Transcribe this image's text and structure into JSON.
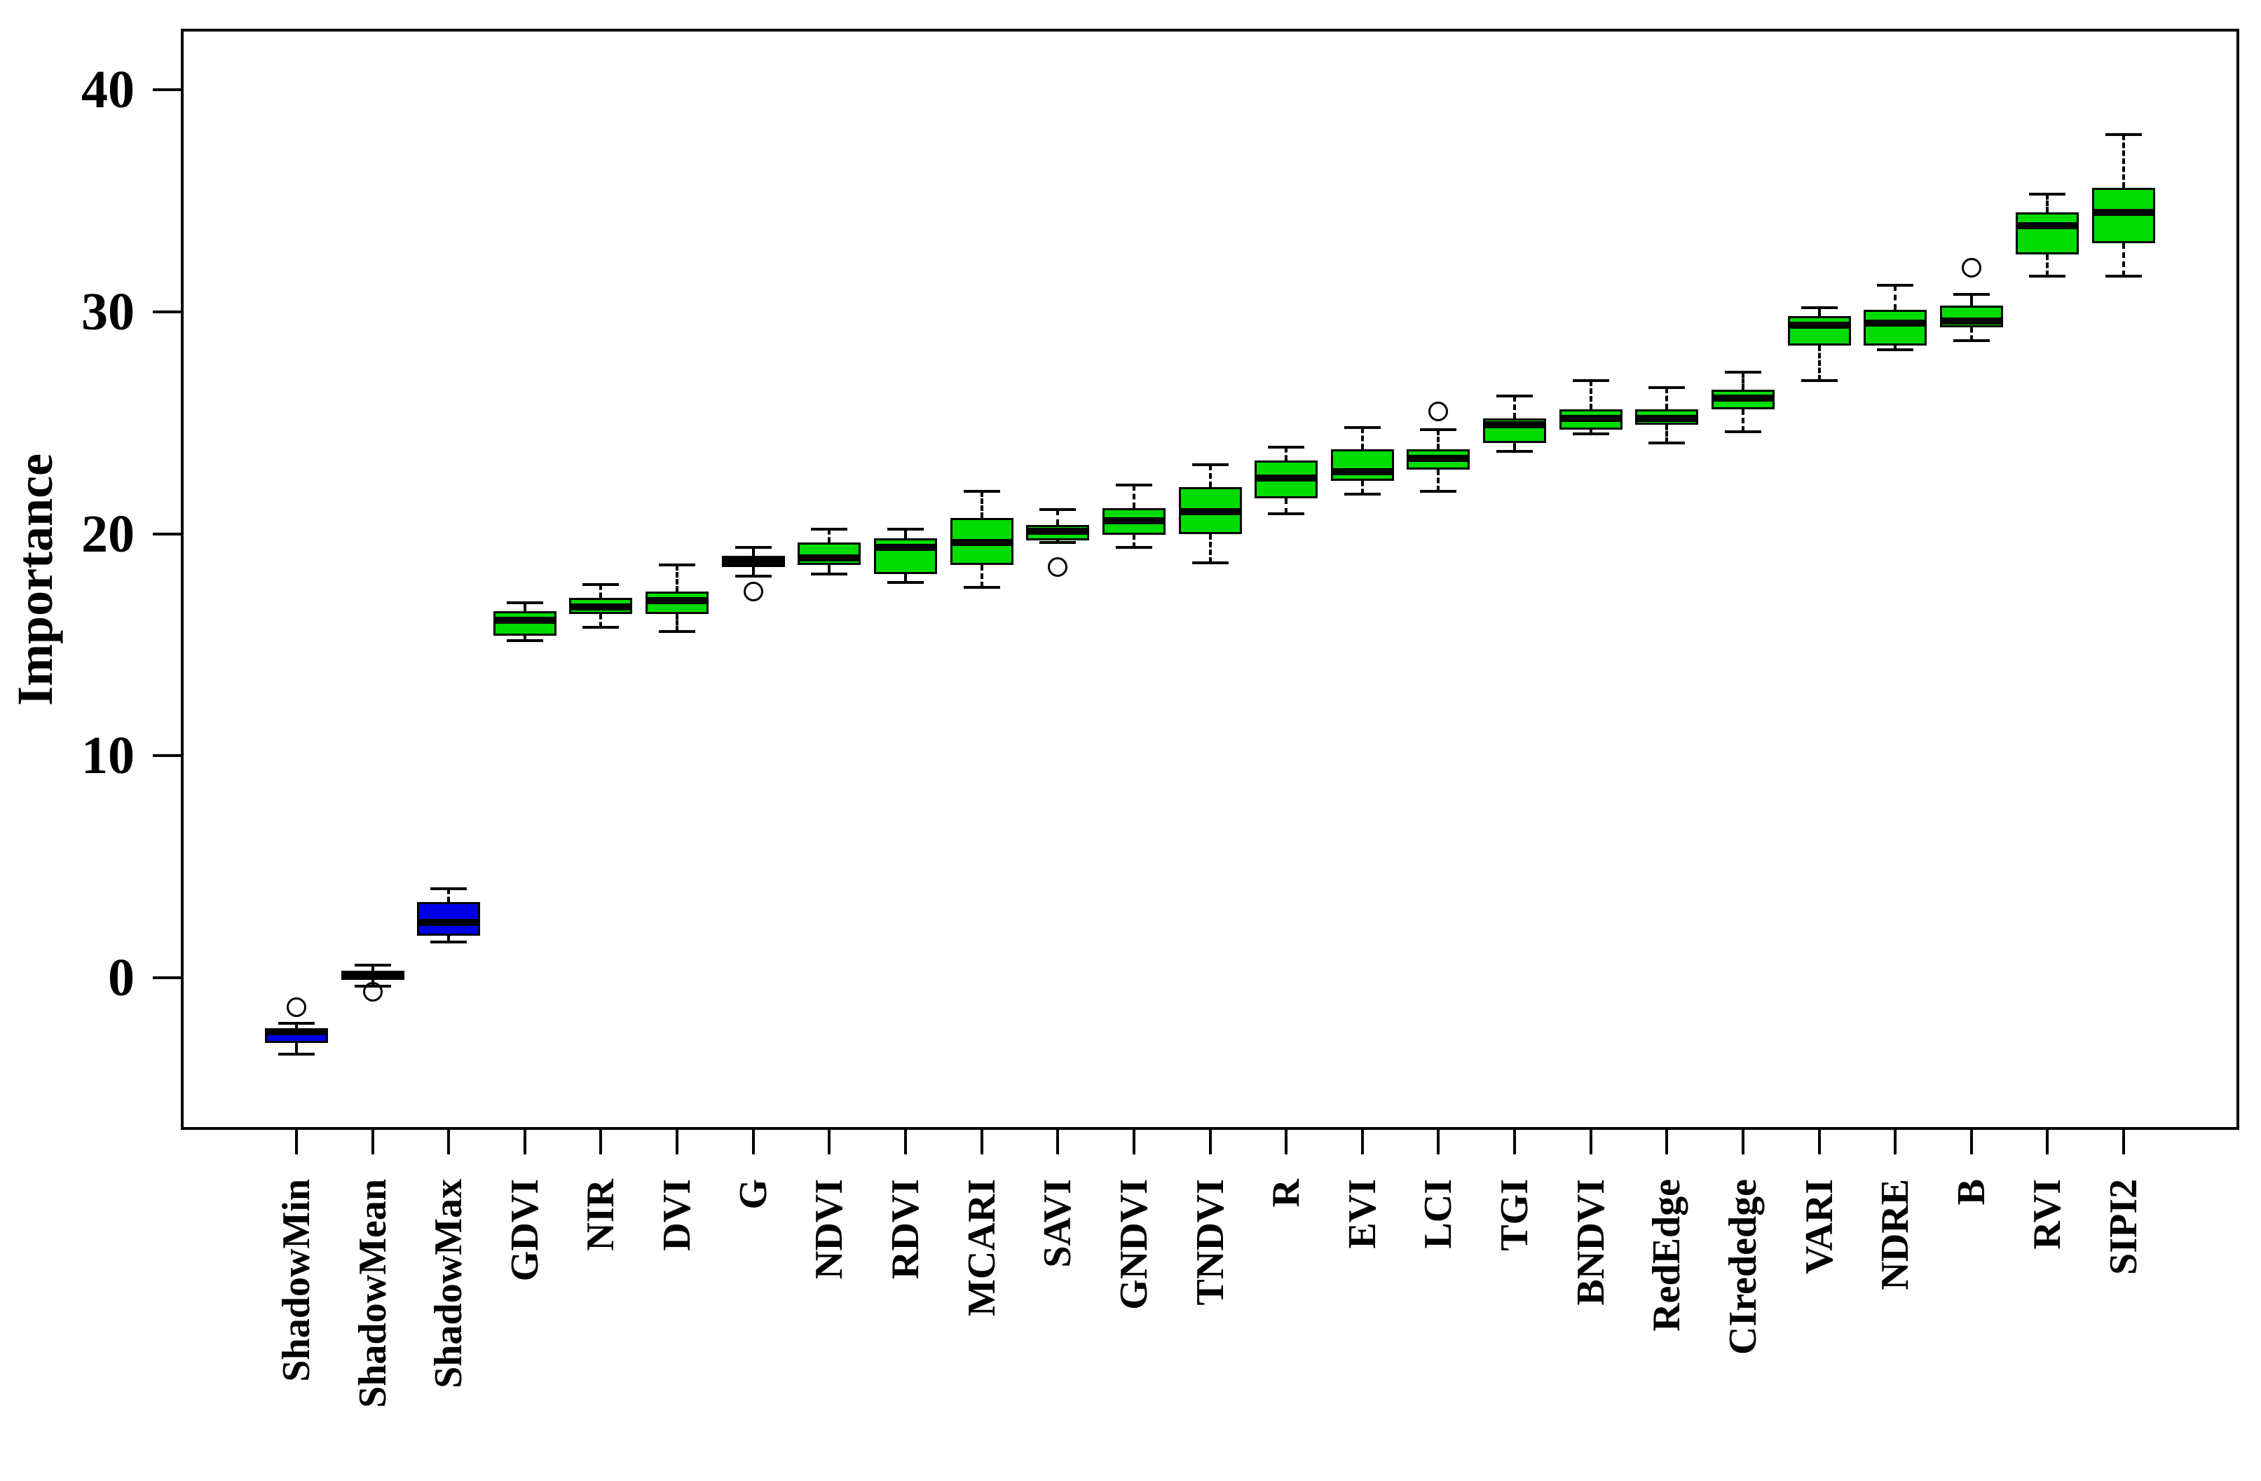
{
  "colors": {
    "box_green": "#00DC00",
    "box_blue": "#0000E6",
    "line": "#000000"
  },
  "chart_data": {
    "type": "box",
    "title": "",
    "xlabel": "",
    "ylabel": "Importance",
    "yticks": [
      0,
      10,
      20,
      30,
      40
    ],
    "ylim": [
      -6.8,
      42.7
    ],
    "grid": false,
    "legend": "none",
    "categories": [
      {
        "label": "ShadowMin",
        "fill": "blue",
        "low": -3.45,
        "q1": -2.95,
        "median": -2.45,
        "q3": -2.3,
        "high": -2.05,
        "outliers": [
          -1.35
        ]
      },
      {
        "label": "ShadowMean",
        "fill": "blue",
        "low": -0.4,
        "q1": -0.1,
        "median": 0.08,
        "q3": 0.3,
        "high": 0.55,
        "outliers": [
          -0.65
        ]
      },
      {
        "label": "ShadowMax",
        "fill": "blue",
        "low": 1.6,
        "q1": 1.9,
        "median": 2.5,
        "q3": 3.4,
        "high": 4.0,
        "outliers": []
      },
      {
        "label": "GDVI",
        "fill": "green",
        "low": 15.2,
        "q1": 15.4,
        "median": 16.1,
        "q3": 16.5,
        "high": 16.9,
        "outliers": []
      },
      {
        "label": "NIR",
        "fill": "green",
        "low": 15.8,
        "q1": 16.4,
        "median": 16.7,
        "q3": 17.1,
        "high": 17.7,
        "outliers": []
      },
      {
        "label": "DVI",
        "fill": "green",
        "low": 15.6,
        "q1": 16.4,
        "median": 17.0,
        "q3": 17.4,
        "high": 18.6,
        "outliers": []
      },
      {
        "label": "G",
        "fill": "green",
        "low": 18.1,
        "q1": 18.5,
        "median": 18.75,
        "q3": 19.0,
        "high": 19.4,
        "outliers": [
          17.4
        ]
      },
      {
        "label": "NDVI",
        "fill": "green",
        "low": 18.2,
        "q1": 18.6,
        "median": 18.9,
        "q3": 19.6,
        "high": 20.2,
        "outliers": []
      },
      {
        "label": "RDVI",
        "fill": "green",
        "low": 17.8,
        "q1": 18.2,
        "median": 19.4,
        "q3": 19.8,
        "high": 20.2,
        "outliers": []
      },
      {
        "label": "MCARI",
        "fill": "green",
        "low": 17.6,
        "q1": 18.6,
        "median": 19.6,
        "q3": 20.7,
        "high": 21.9,
        "outliers": []
      },
      {
        "label": "SAVI",
        "fill": "green",
        "low": 19.6,
        "q1": 19.7,
        "median": 20.1,
        "q3": 20.4,
        "high": 21.1,
        "outliers": [
          18.5
        ]
      },
      {
        "label": "GNDVI",
        "fill": "green",
        "low": 19.4,
        "q1": 19.95,
        "median": 20.6,
        "q3": 21.15,
        "high": 22.2,
        "outliers": []
      },
      {
        "label": "TNDVI",
        "fill": "green",
        "low": 18.7,
        "q1": 20.0,
        "median": 21.0,
        "q3": 22.1,
        "high": 23.1,
        "outliers": []
      },
      {
        "label": "R",
        "fill": "green",
        "low": 20.9,
        "q1": 21.6,
        "median": 22.5,
        "q3": 23.3,
        "high": 23.9,
        "outliers": []
      },
      {
        "label": "EVI",
        "fill": "green",
        "low": 21.8,
        "q1": 22.4,
        "median": 22.8,
        "q3": 23.8,
        "high": 24.8,
        "outliers": []
      },
      {
        "label": "LCI",
        "fill": "green",
        "low": 21.9,
        "q1": 22.9,
        "median": 23.4,
        "q3": 23.8,
        "high": 24.7,
        "outliers": [
          25.5
        ]
      },
      {
        "label": "TGI",
        "fill": "green",
        "low": 23.7,
        "q1": 24.1,
        "median": 24.9,
        "q3": 25.2,
        "high": 26.2,
        "outliers": []
      },
      {
        "label": "BNDVI",
        "fill": "green",
        "low": 24.5,
        "q1": 24.7,
        "median": 25.2,
        "q3": 25.6,
        "high": 26.9,
        "outliers": []
      },
      {
        "label": "RedEdge",
        "fill": "green",
        "low": 24.1,
        "q1": 24.9,
        "median": 25.2,
        "q3": 25.6,
        "high": 26.6,
        "outliers": []
      },
      {
        "label": "CIrededge",
        "fill": "green",
        "low": 24.6,
        "q1": 25.6,
        "median": 26.1,
        "q3": 26.5,
        "high": 27.3,
        "outliers": []
      },
      {
        "label": "VARI",
        "fill": "green",
        "low": 26.9,
        "q1": 28.5,
        "median": 29.4,
        "q3": 29.8,
        "high": 30.2,
        "outliers": []
      },
      {
        "label": "NDRE",
        "fill": "green",
        "low": 28.3,
        "q1": 28.5,
        "median": 29.5,
        "q3": 30.1,
        "high": 31.2,
        "outliers": []
      },
      {
        "label": "B",
        "fill": "green",
        "low": 28.7,
        "q1": 29.3,
        "median": 29.6,
        "q3": 30.3,
        "high": 30.8,
        "outliers": [
          32.0
        ]
      },
      {
        "label": "RVI",
        "fill": "green",
        "low": 31.6,
        "q1": 32.6,
        "median": 33.9,
        "q3": 34.5,
        "high": 35.3,
        "outliers": []
      },
      {
        "label": "SIPI2",
        "fill": "green",
        "low": 31.6,
        "q1": 33.1,
        "median": 34.5,
        "q3": 35.6,
        "high": 38.0,
        "outliers": []
      }
    ]
  }
}
